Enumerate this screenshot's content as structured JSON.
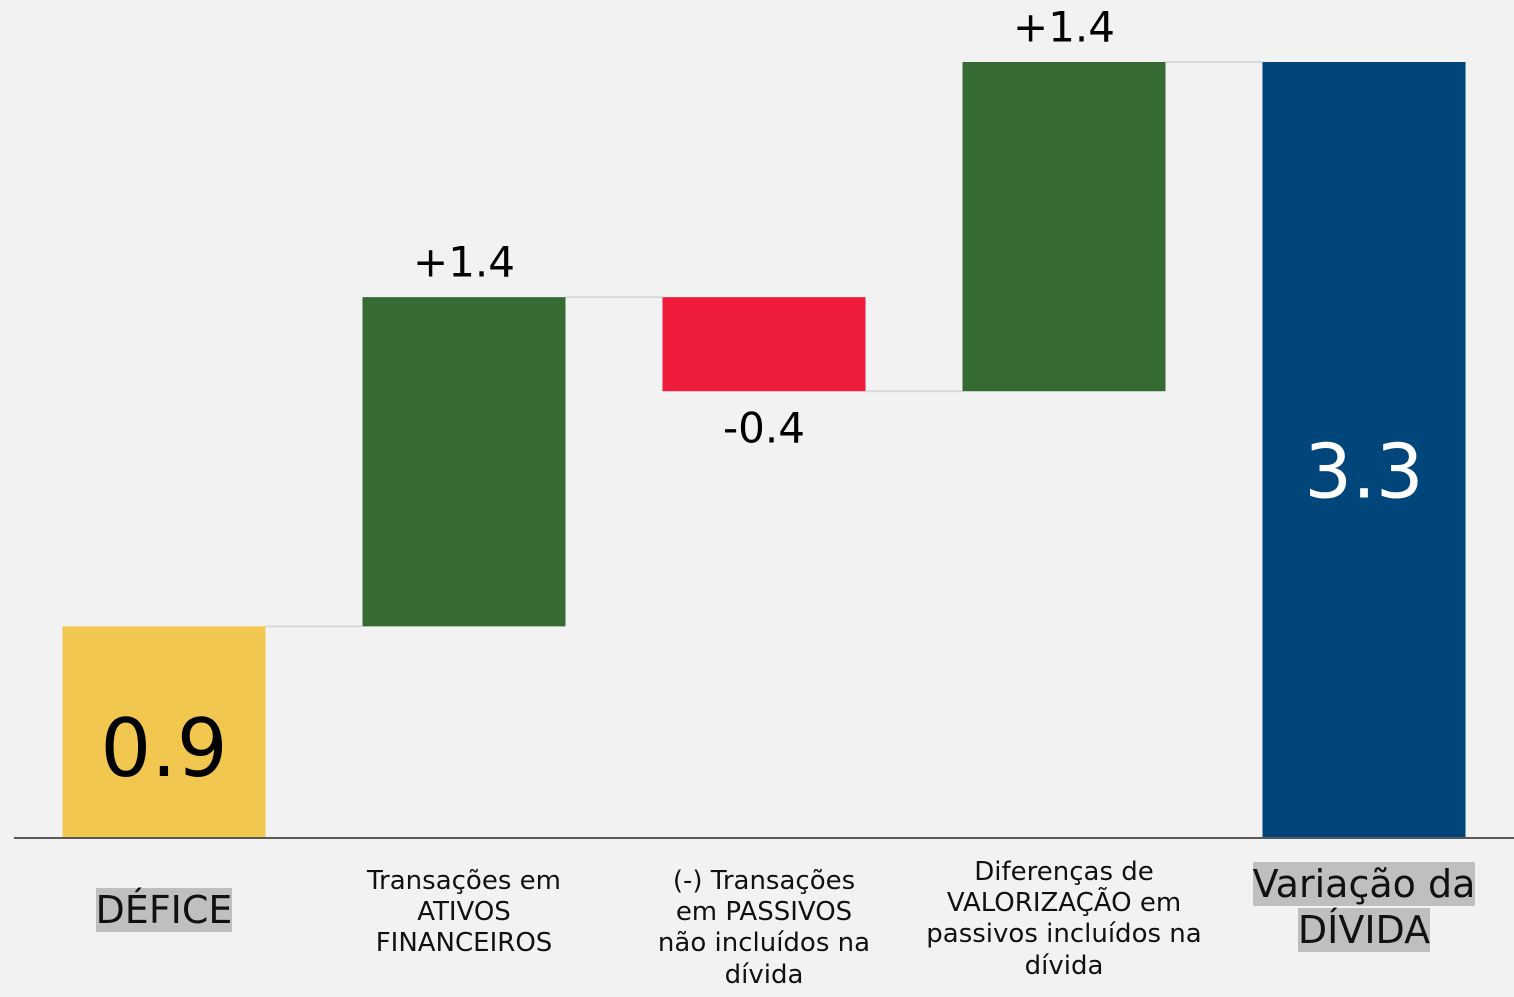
{
  "chart_data": {
    "type": "waterfall",
    "categories": [
      "DÉFICE",
      "Transações em\nATIVOS\nFINANCEIROS",
      "(-) Transações\nem PASSIVOS\nnão incluídos na\ndívida",
      "Diferenças de\nVALORIZAÇÃO em\npassivos incluídos na\ndívida",
      "Variação da\nDÍVIDA"
    ],
    "measure": [
      "absolute",
      "relative",
      "relative",
      "relative",
      "total"
    ],
    "values": [
      0.9,
      1.4,
      -0.4,
      1.4,
      3.3
    ],
    "value_labels": [
      "0.9",
      "+1.4",
      "-0.4",
      "+1.4",
      "3.3"
    ],
    "colors": [
      "#f2c750",
      "#356a33",
      "#ee1b3b",
      "#356a33",
      "#00467a"
    ],
    "ylim": [
      0,
      3.3
    ]
  }
}
